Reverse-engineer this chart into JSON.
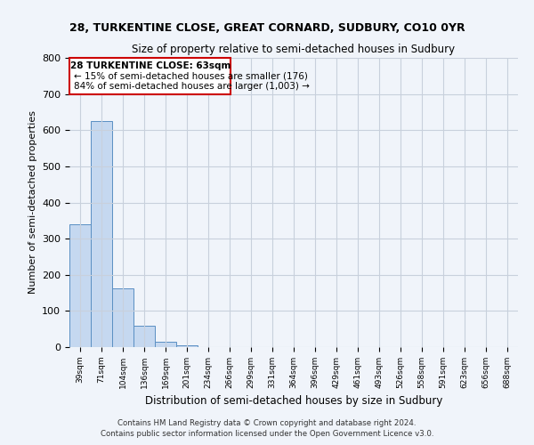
{
  "title_line1": "28, TURKENTINE CLOSE, GREAT CORNARD, SUDBURY, CO10 0YR",
  "title_line2": "Size of property relative to semi-detached houses in Sudbury",
  "xlabel": "Distribution of semi-detached houses by size in Sudbury",
  "ylabel": "Number of semi-detached properties",
  "footer_line1": "Contains HM Land Registry data © Crown copyright and database right 2024.",
  "footer_line2": "Contains public sector information licensed under the Open Government Licence v3.0.",
  "categories": [
    "39sqm",
    "71sqm",
    "104sqm",
    "136sqm",
    "169sqm",
    "201sqm",
    "234sqm",
    "266sqm",
    "299sqm",
    "331sqm",
    "364sqm",
    "396sqm",
    "429sqm",
    "461sqm",
    "493sqm",
    "526sqm",
    "558sqm",
    "591sqm",
    "623sqm",
    "656sqm",
    "688sqm"
  ],
  "values": [
    340,
    625,
    162,
    60,
    15,
    5,
    1,
    0,
    0,
    0,
    0,
    0,
    0,
    0,
    0,
    0,
    0,
    0,
    0,
    0,
    0
  ],
  "bar_color": "#c5d8f0",
  "bar_edge_color": "#5a8fc3",
  "grid_color": "#c8d0dc",
  "background_color": "#f0f4fa",
  "annotation_text_line1": "28 TURKENTINE CLOSE: 63sqm",
  "annotation_text_line2": "← 15% of semi-detached houses are smaller (176)",
  "annotation_text_line3": "84% of semi-detached houses are larger (1,003) →",
  "annotation_box_color": "#ffffff",
  "annotation_border_color": "#cc0000",
  "ylim": [
    0,
    800
  ],
  "yticks": [
    0,
    100,
    200,
    300,
    400,
    500,
    600,
    700,
    800
  ]
}
